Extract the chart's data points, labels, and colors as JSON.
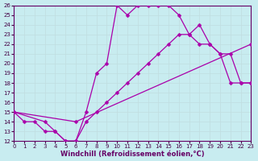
{
  "xlabel": "Windchill (Refroidissement éolien,°C)",
  "bg_color": "#c8ecf0",
  "line_color": "#aa00aa",
  "grid_color": "#c0dde0",
  "xlim": [
    0,
    23
  ],
  "ylim": [
    12,
    26
  ],
  "xticks": [
    0,
    1,
    2,
    3,
    4,
    5,
    6,
    7,
    8,
    9,
    10,
    11,
    12,
    13,
    14,
    15,
    16,
    17,
    18,
    19,
    20,
    21,
    22,
    23
  ],
  "yticks": [
    12,
    13,
    14,
    15,
    16,
    17,
    18,
    19,
    20,
    21,
    22,
    23,
    24,
    25,
    26
  ],
  "line1_x": [
    0,
    1,
    2,
    3,
    4,
    5,
    6,
    7,
    8,
    9,
    10,
    11,
    12,
    13,
    14,
    15,
    16,
    17,
    18,
    19,
    20,
    21,
    22,
    23
  ],
  "line1_y": [
    15,
    14,
    14,
    13,
    13,
    12,
    12,
    15,
    19,
    20,
    26,
    25,
    26,
    26,
    26,
    26,
    25,
    23,
    22,
    22,
    21,
    18,
    18,
    18
  ],
  "line2_x": [
    0,
    6,
    23
  ],
  "line2_y": [
    15,
    14,
    22
  ],
  "line3_x": [
    0,
    3,
    4,
    5,
    6,
    7,
    8,
    9,
    10,
    11,
    12,
    13,
    14,
    15,
    16,
    17,
    18,
    19,
    20,
    21,
    22,
    23
  ],
  "line3_y": [
    15,
    14,
    13,
    12,
    12,
    14,
    15,
    16,
    17,
    18,
    19,
    20,
    21,
    22,
    23,
    23,
    24,
    22,
    21,
    21,
    18,
    18
  ],
  "markersize": 2.5,
  "linewidth": 0.9,
  "tick_fontsize": 5,
  "axis_fontsize": 6,
  "xlabel_color": "#660066",
  "spine_color": "#660066",
  "tick_color": "#440044"
}
